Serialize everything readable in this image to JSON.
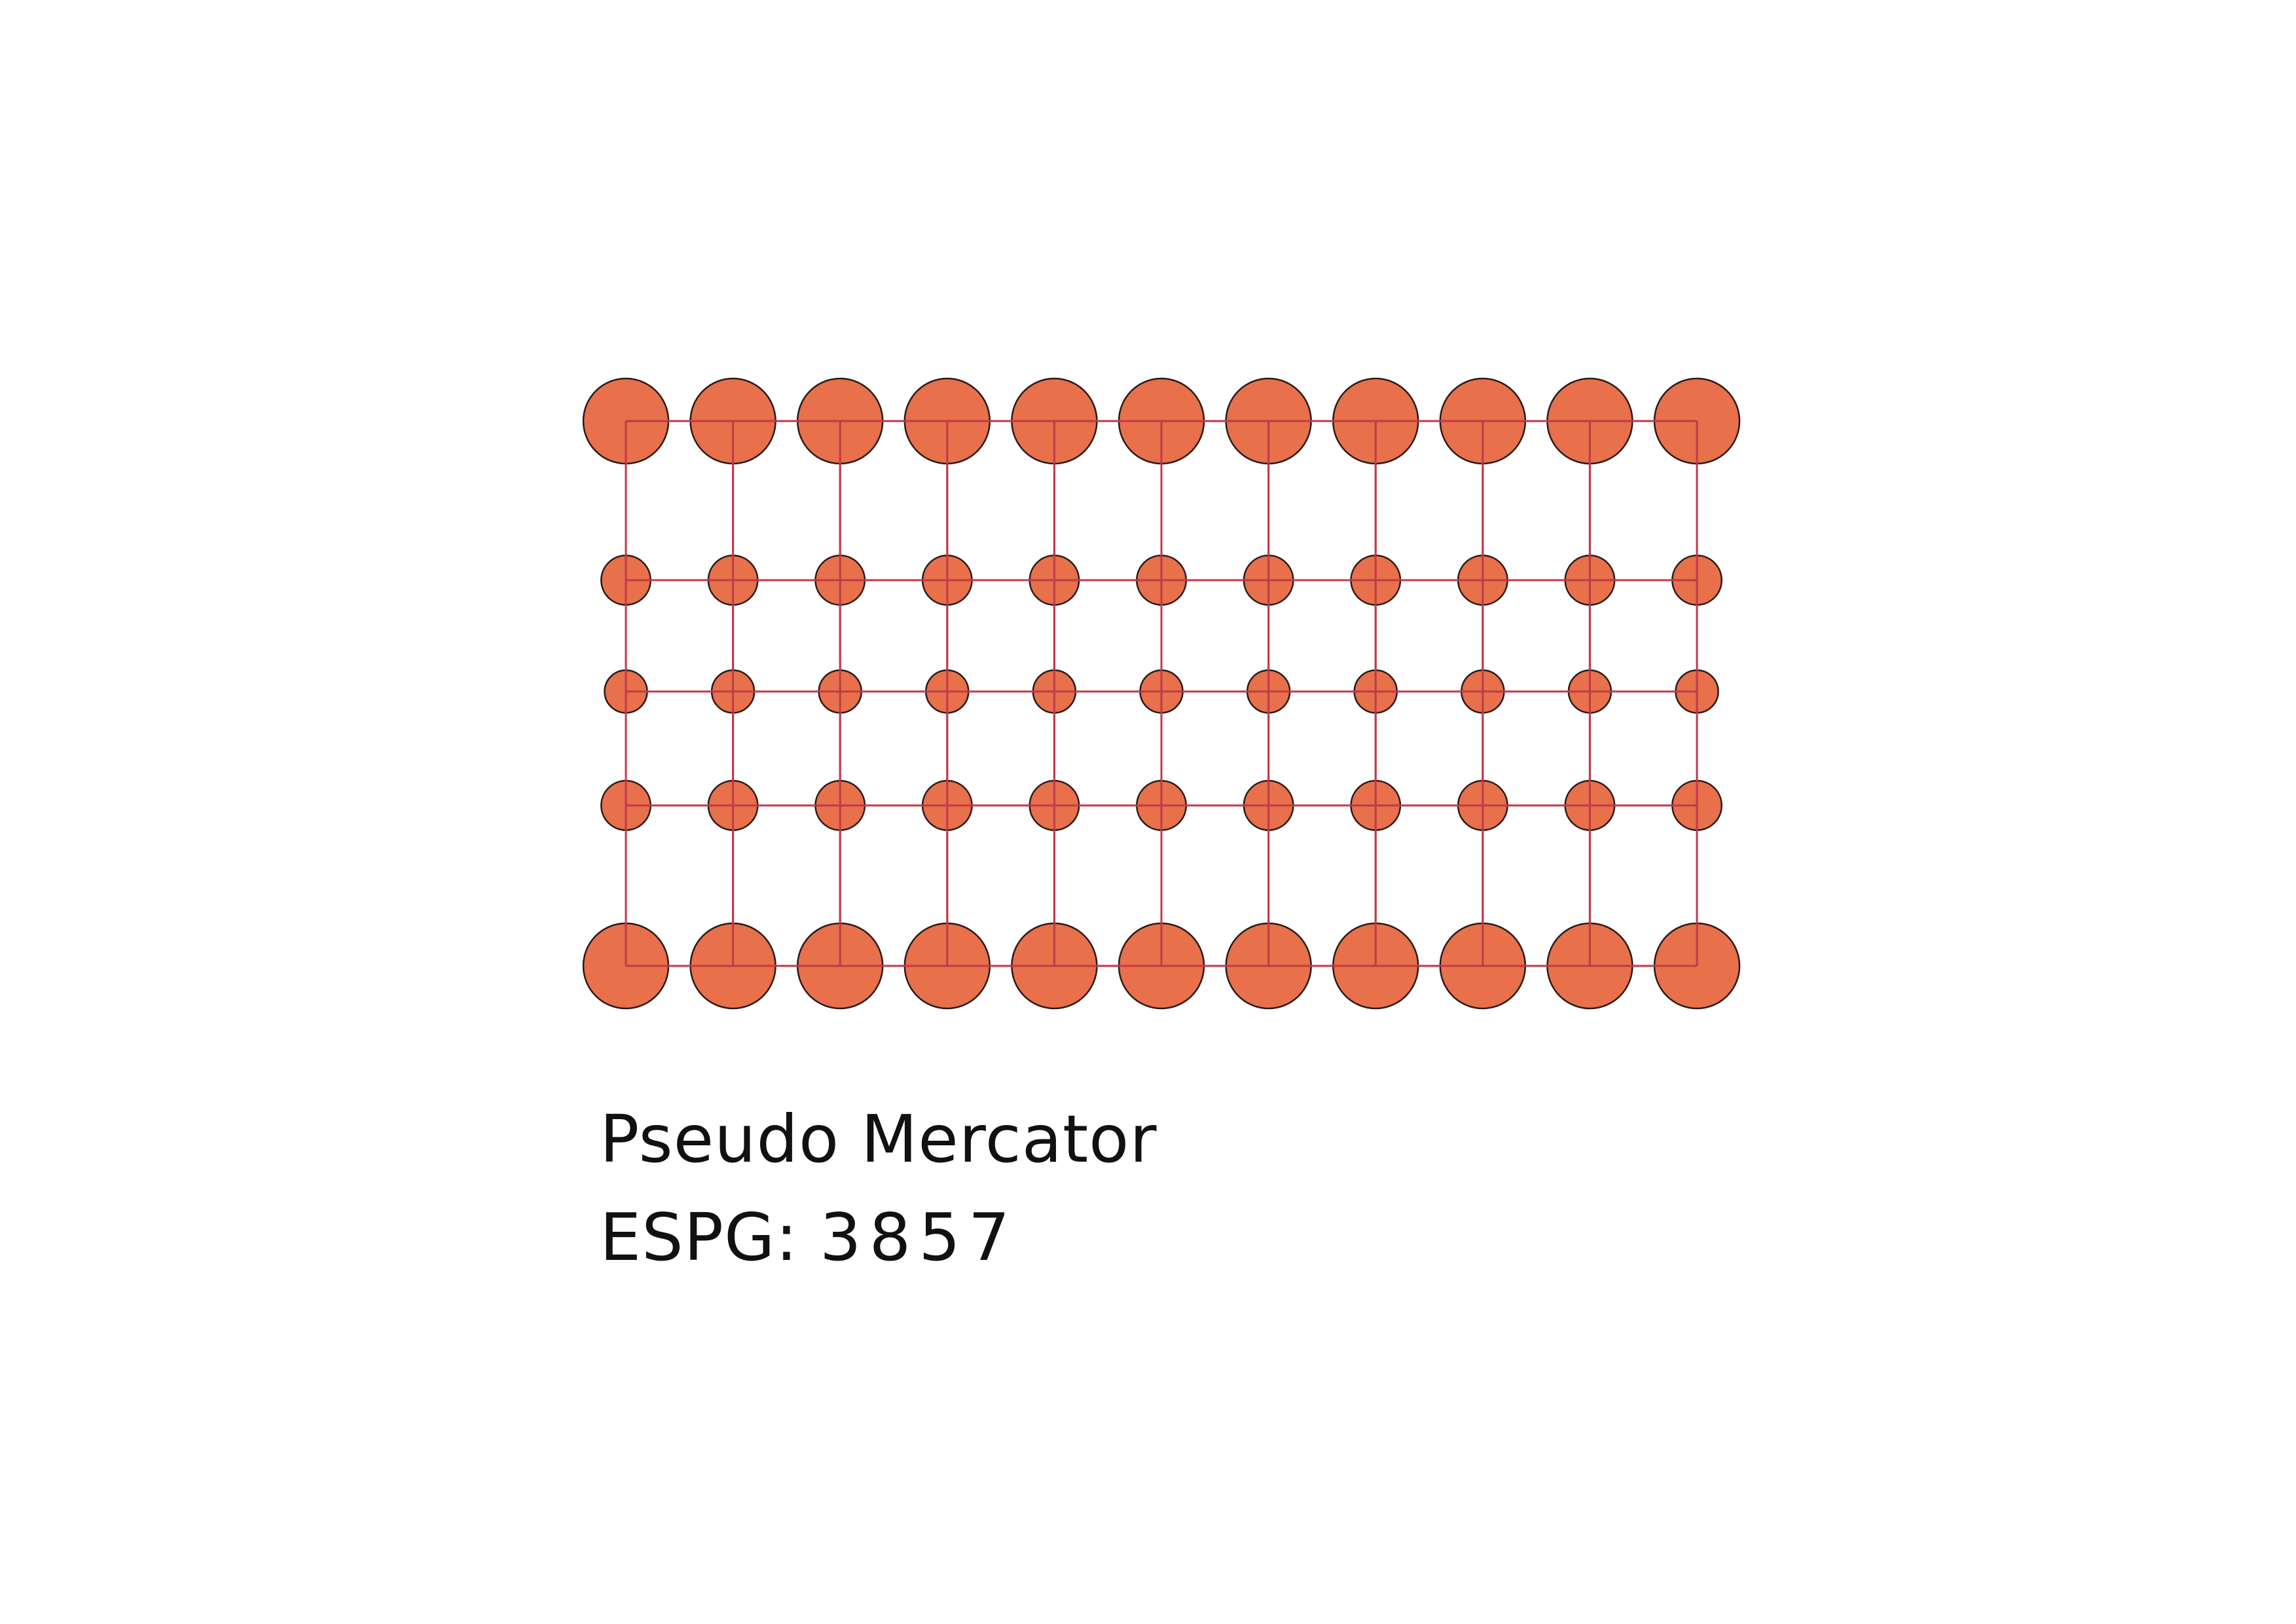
{
  "diagram": {
    "title": "Pseudo Mercator",
    "code_label": "ESPG",
    "code_separator": ":",
    "code_value": "3857",
    "columns": 11,
    "row_scale": [
      1.0,
      0.58,
      0.5,
      0.58,
      1.0
    ],
    "colors": {
      "circle_fill": "#E8704A",
      "circle_stroke": "#2A1A1A",
      "grid_line": "#C0394A"
    }
  }
}
